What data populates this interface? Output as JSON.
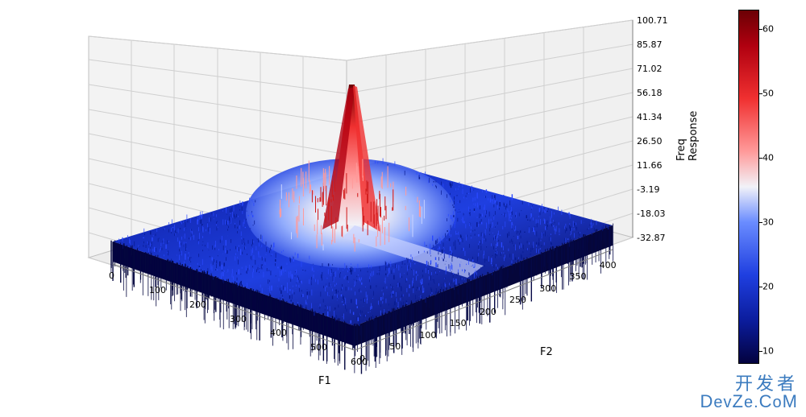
{
  "chart": {
    "type": "3d-surface",
    "background_color": "#ffffff",
    "colormap": {
      "name": "bwr",
      "stops": [
        {
          "t": 0.0,
          "color": "#03023f"
        },
        {
          "t": 0.12,
          "color": "#0b1c9c"
        },
        {
          "t": 0.25,
          "color": "#1f3fe0"
        },
        {
          "t": 0.4,
          "color": "#6a8cff"
        },
        {
          "t": 0.5,
          "color": "#f2f2f8"
        },
        {
          "t": 0.6,
          "color": "#ff9a9a"
        },
        {
          "t": 0.75,
          "color": "#f03030"
        },
        {
          "t": 0.9,
          "color": "#b00010"
        },
        {
          "t": 1.0,
          "color": "#6b0004"
        }
      ]
    },
    "axes": {
      "f1": {
        "label": "F1",
        "ticks": [
          0,
          100,
          200,
          300,
          400,
          500,
          600
        ],
        "range": [
          0,
          600
        ]
      },
      "f2": {
        "label": "F2",
        "ticks": [
          0,
          50,
          100,
          150,
          200,
          250,
          300,
          350,
          400
        ],
        "range": [
          0,
          430
        ]
      },
      "z": {
        "label": "Freq Response",
        "ticks": [
          -32.87,
          -18.03,
          -3.19,
          11.66,
          26.5,
          41.34,
          56.18,
          71.02,
          85.87,
          100.71
        ],
        "range": [
          -32.87,
          100.71
        ]
      }
    },
    "colorbar": {
      "vmin": 8,
      "vmax": 63,
      "ticks": [
        10,
        20,
        30,
        40,
        50,
        60
      ]
    },
    "grid": {
      "pane_fill": "#f0f0f0",
      "pane_edge": "#bfbfbf",
      "grid_color": "#cfcfcf"
    },
    "view": {
      "elev": 25,
      "azim": -60
    },
    "surface_summary": {
      "description": "Noisy 2‑D frequency response (|FFT|) on a 600×430 grid. Mostly low (blue) plateau of random spikes sitting near z≈0–20 with dense downward spikes to ≈ −30. A narrow central peak near (F1≈300, F2≈215) rises sharply to ≈100. A faint lighter ridge fans diagonally from the peak toward higher F1 / lower F2.",
      "baseline_mean": 5,
      "baseline_noise_std": 10,
      "downward_spike_min": -32.87,
      "peak": {
        "f1": 300,
        "f2": 215,
        "z": 100.71,
        "fwhm": 40
      },
      "ridge": {
        "direction": "toward (F1=500, F2=100)",
        "z_approx": 30
      }
    },
    "label_fontsize": 13,
    "tick_fontsize": 11
  },
  "watermark": {
    "line1": "开发者",
    "line2_html": "DevZe.CoM",
    "color": "#3b7bbf"
  }
}
